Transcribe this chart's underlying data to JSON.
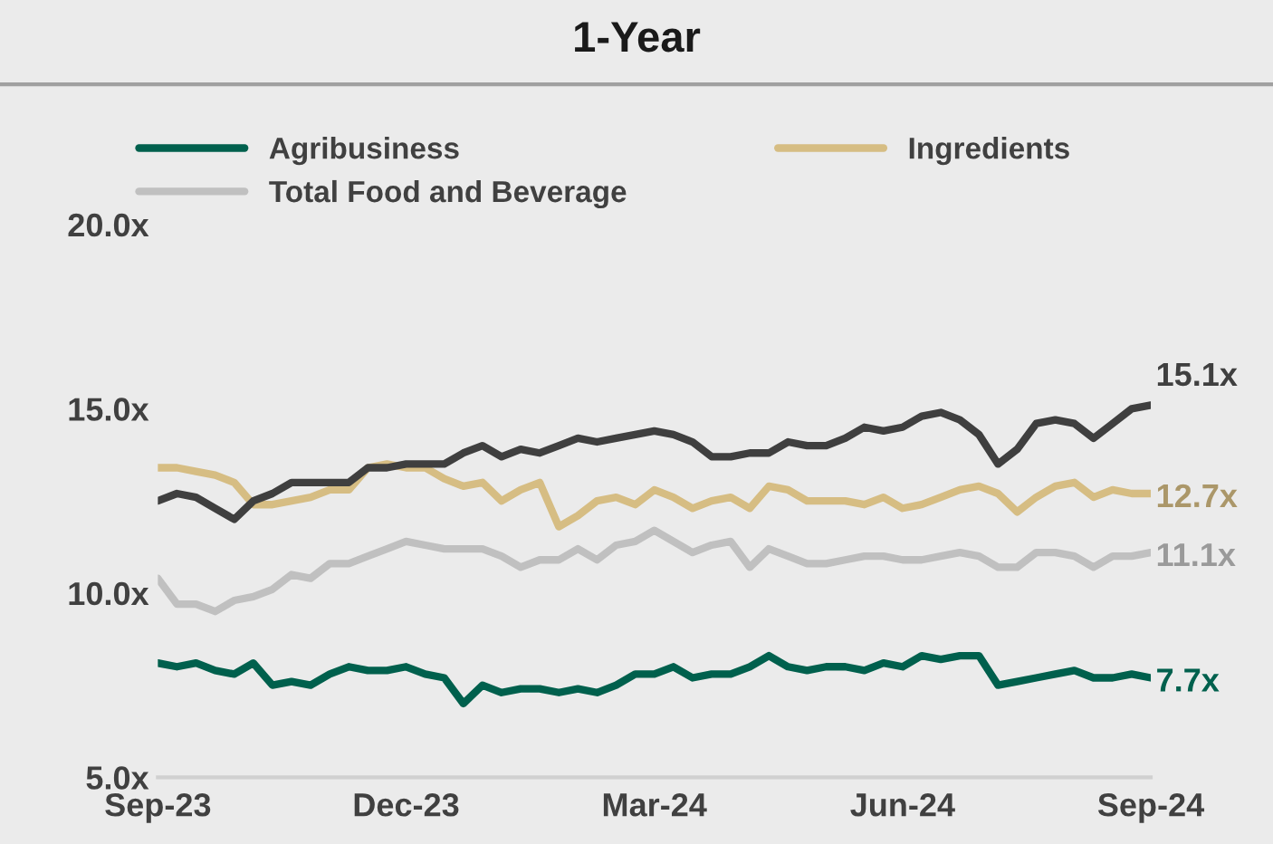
{
  "chart_data": {
    "type": "line",
    "title": "1-Year",
    "categories": [
      "Sep-23",
      null,
      null,
      null,
      null,
      null,
      null,
      null,
      null,
      null,
      null,
      null,
      null,
      "Dec-23",
      null,
      null,
      null,
      null,
      null,
      null,
      null,
      null,
      null,
      null,
      null,
      null,
      "Mar-24",
      null,
      null,
      null,
      null,
      null,
      null,
      null,
      null,
      null,
      null,
      null,
      null,
      "Jun-24",
      null,
      null,
      null,
      null,
      null,
      null,
      null,
      null,
      null,
      null,
      null,
      null,
      "Sep-24"
    ],
    "series": [
      {
        "name": "Agribusiness",
        "color": "#00604d",
        "values": [
          8.1,
          8.0,
          8.1,
          7.9,
          7.8,
          8.1,
          7.5,
          7.6,
          7.5,
          7.8,
          8.0,
          7.9,
          7.9,
          8.0,
          7.8,
          7.7,
          7.0,
          7.5,
          7.3,
          7.4,
          7.4,
          7.3,
          7.4,
          7.3,
          7.5,
          7.8,
          7.8,
          8.0,
          7.7,
          7.8,
          7.8,
          8.0,
          8.3,
          8.0,
          7.9,
          8.0,
          8.0,
          7.9,
          8.1,
          8.0,
          8.3,
          8.2,
          8.3,
          8.3,
          7.5,
          7.6,
          7.7,
          7.8,
          7.9,
          7.7,
          7.7,
          7.8,
          7.7
        ]
      },
      {
        "name": "Ingredients",
        "color": "#d6bd83",
        "values": [
          13.4,
          13.4,
          13.3,
          13.2,
          13.0,
          12.4,
          12.4,
          12.5,
          12.6,
          12.8,
          12.8,
          13.4,
          13.5,
          13.4,
          13.4,
          13.1,
          12.9,
          13.0,
          12.5,
          12.8,
          13.0,
          11.8,
          12.1,
          12.5,
          12.6,
          12.4,
          12.8,
          12.6,
          12.3,
          12.5,
          12.6,
          12.3,
          12.9,
          12.8,
          12.5,
          12.5,
          12.5,
          12.4,
          12.6,
          12.3,
          12.4,
          12.6,
          12.8,
          12.9,
          12.7,
          12.2,
          12.6,
          12.9,
          13.0,
          12.6,
          12.8,
          12.7,
          12.7
        ]
      },
      {
        "name": "Total Food and Beverage",
        "color": "#c0c0c0",
        "values": [
          10.4,
          9.7,
          9.7,
          9.5,
          9.8,
          9.9,
          10.1,
          10.5,
          10.4,
          10.8,
          10.8,
          11.0,
          11.2,
          11.4,
          11.3,
          11.2,
          11.2,
          11.2,
          11.0,
          10.7,
          10.9,
          10.9,
          11.2,
          10.9,
          11.3,
          11.4,
          11.7,
          11.4,
          11.1,
          11.3,
          11.4,
          10.7,
          11.2,
          11.0,
          10.8,
          10.8,
          10.9,
          11.0,
          11.0,
          10.9,
          10.9,
          11.0,
          11.1,
          11.0,
          10.7,
          10.7,
          11.1,
          11.1,
          11.0,
          10.7,
          11.0,
          11.0,
          11.1
        ]
      },
      {
        "color": "#3f3f3f",
        "values": [
          12.5,
          12.7,
          12.6,
          12.3,
          12.0,
          12.5,
          12.7,
          13.0,
          13.0,
          13.0,
          13.0,
          13.4,
          13.4,
          13.5,
          13.5,
          13.5,
          13.8,
          14.0,
          13.7,
          13.9,
          13.8,
          14.0,
          14.2,
          14.1,
          14.2,
          14.3,
          14.4,
          14.3,
          14.1,
          13.7,
          13.7,
          13.8,
          13.8,
          14.1,
          14.0,
          14.0,
          14.2,
          14.5,
          14.4,
          14.5,
          14.8,
          14.9,
          14.7,
          14.3,
          13.5,
          13.9,
          14.6,
          14.7,
          14.6,
          14.2,
          14.6,
          15.0,
          15.1
        ]
      }
    ],
    "ylim": [
      5,
      20
    ],
    "yticks": [
      {
        "value": 5,
        "label": "5.0x"
      },
      {
        "value": 10,
        "label": "10.0x"
      },
      {
        "value": 15,
        "label": "15.0x"
      },
      {
        "value": 20,
        "label": "20.0x"
      }
    ],
    "annotations": [
      {
        "text": "15.1x",
        "x": "Sep-24",
        "y": 15.1
      },
      {
        "text": "12.7x",
        "x": "Sep-24",
        "y": 12.7
      },
      {
        "text": "11.1x",
        "x": "Sep-24",
        "y": 11.1
      },
      {
        "text": "7.7x",
        "x": "Sep-24",
        "y": 7.7
      }
    ],
    "grid": false,
    "legend": "top",
    "marker": "none",
    "line_style": "solid"
  }
}
